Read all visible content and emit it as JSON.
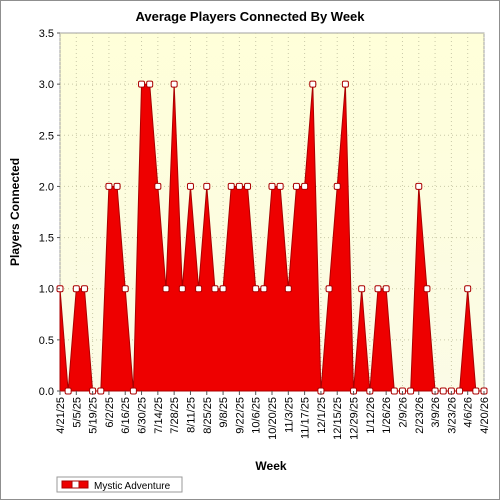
{
  "chart_data": {
    "type": "area",
    "title": "Average Players Connected By Week",
    "xlabel": "Week",
    "ylabel": "Players Connected",
    "ylim": [
      0,
      3.5
    ],
    "yticks": [
      "0.0",
      "0.5",
      "1.0",
      "1.5",
      "2.0",
      "2.5",
      "3.0",
      "3.5"
    ],
    "grid": true,
    "legend_position": "bottom-left",
    "colors": {
      "fill": "#ee0000",
      "stroke": "#aa0000",
      "plot_bg_top": "#ffffd9",
      "plot_bg_bottom": "#fbfbe6",
      "grid": "#c9c9a8"
    },
    "x_tick_labels": [
      "4/21/25",
      "5/5/25",
      "5/19/25",
      "6/2/25",
      "6/16/25",
      "6/30/25",
      "7/14/25",
      "7/28/25",
      "8/11/25",
      "8/25/25",
      "9/8/25",
      "9/22/25",
      "10/6/25",
      "10/20/25",
      "11/3/25",
      "11/17/25",
      "12/1/25",
      "12/15/25",
      "12/29/25",
      "1/12/26",
      "1/26/26",
      "2/9/26",
      "2/23/26",
      "3/9/26",
      "3/23/26",
      "4/6/26",
      "4/20/26"
    ],
    "x": [
      "4/21/25",
      "4/28/25",
      "5/5/25",
      "5/12/25",
      "5/19/25",
      "5/26/25",
      "6/2/25",
      "6/9/25",
      "6/16/25",
      "6/23/25",
      "6/30/25",
      "7/7/25",
      "7/14/25",
      "7/21/25",
      "7/28/25",
      "8/4/25",
      "8/11/25",
      "8/18/25",
      "8/25/25",
      "9/1/25",
      "9/8/25",
      "9/15/25",
      "9/22/25",
      "9/29/25",
      "10/6/25",
      "10/13/25",
      "10/20/25",
      "10/27/25",
      "11/3/25",
      "11/10/25",
      "11/17/25",
      "11/24/25",
      "12/1/25",
      "12/8/25",
      "12/15/25",
      "12/22/25",
      "12/29/25",
      "1/5/26",
      "1/12/26",
      "1/19/26",
      "1/26/26",
      "2/2/26",
      "2/9/26",
      "2/16/26",
      "2/23/26",
      "3/2/26",
      "3/9/26",
      "3/16/26",
      "3/23/26",
      "3/30/26",
      "4/6/26",
      "4/13/26",
      "4/20/26"
    ],
    "series": [
      {
        "name": "Mystic Adventure",
        "values": [
          1,
          0,
          1,
          1,
          0,
          0,
          2,
          2,
          1,
          0,
          3,
          3,
          2,
          1,
          3,
          1,
          2,
          1,
          2,
          1,
          1,
          2,
          2,
          2,
          1,
          1,
          2,
          2,
          1,
          2,
          2,
          3,
          0,
          1,
          2,
          3,
          0,
          1,
          0,
          1,
          1,
          0,
          0,
          0,
          2,
          1,
          0,
          0,
          0,
          0,
          1,
          0,
          0
        ]
      }
    ]
  }
}
